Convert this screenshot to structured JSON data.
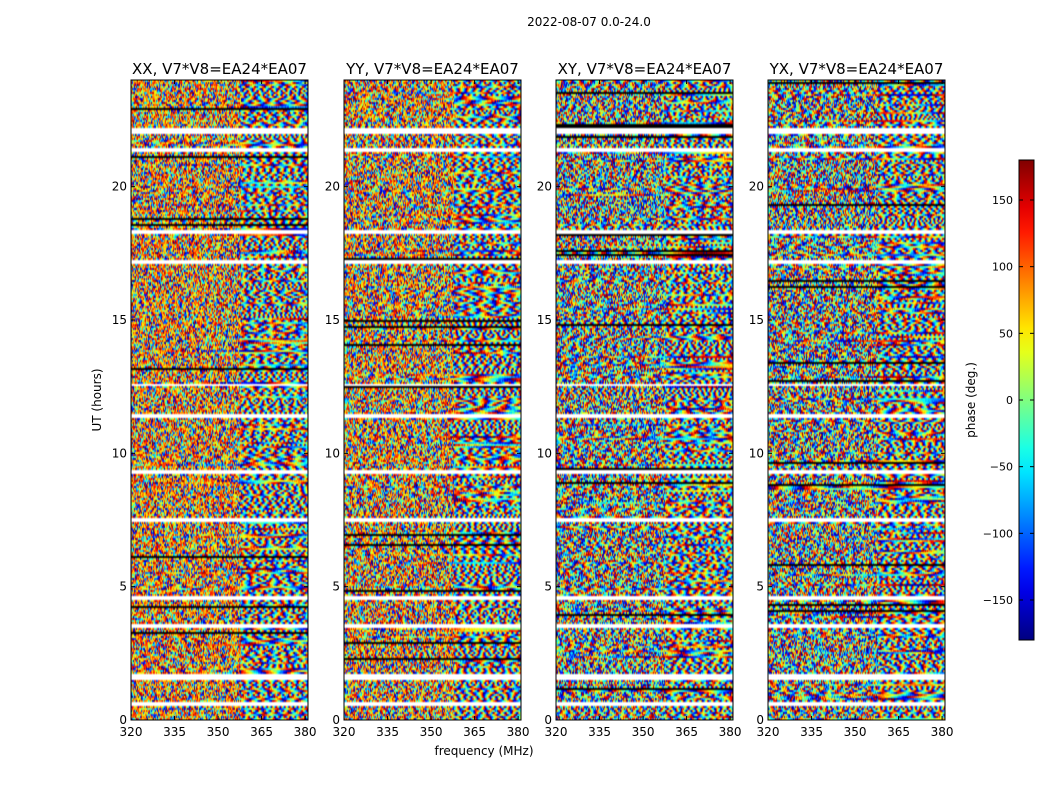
{
  "chart_data": [
    {
      "type": "heatmap",
      "suptitle": "2022-08-07 0.0-24.0",
      "panels": [
        {
          "title": "XX, V7*V8=EA24*EA07",
          "pol": "XX",
          "seed": 11,
          "warm": 0.55
        },
        {
          "title": "YY, V7*V8=EA24*EA07",
          "pol": "YY",
          "seed": 23,
          "warm": 0.45
        },
        {
          "title": "XY, V7*V8=EA24*EA07",
          "pol": "XY",
          "seed": 37,
          "warm": 0.0
        },
        {
          "title": "YX, V7*V8=EA24*EA07",
          "pol": "YX",
          "seed": 53,
          "warm": 0.0
        }
      ],
      "xlabel": "frequency (MHz)",
      "ylabel": "UT (hours)",
      "xlim": [
        320,
        381
      ],
      "ylim": [
        0,
        24
      ],
      "xticks": [
        320,
        335,
        350,
        365,
        380
      ],
      "yticks": [
        0,
        5,
        10,
        15,
        20
      ],
      "colorbar": {
        "label": "phase (deg.)",
        "range": [
          -180,
          180
        ],
        "ticks": [
          150,
          100,
          50,
          0,
          -50,
          -100,
          -150
        ],
        "tick_labels": [
          "150",
          "100",
          "50",
          "0",
          "−50",
          "−100",
          "−150"
        ]
      },
      "flagged_hours": [
        0.55,
        1.55,
        1.6,
        3.5,
        3.55,
        4.55,
        7.5,
        9.3,
        11.4,
        12.55,
        17.2,
        18.3,
        21.4,
        22.1,
        22.15
      ]
    }
  ]
}
